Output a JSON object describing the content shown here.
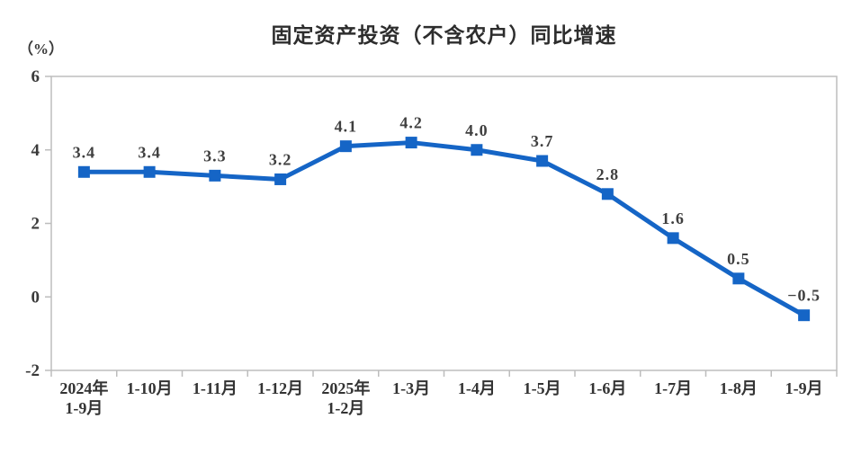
{
  "page": {
    "background_color": "#ffffff"
  },
  "chart_data": {
    "type": "line",
    "title": "固定资产投资（不含农户）同比增速",
    "unit_label": "（%）",
    "categories": [
      [
        "2024年",
        "1-9月"
      ],
      [
        "1-10月"
      ],
      [
        "1-11月"
      ],
      [
        "1-12月"
      ],
      [
        "2025年",
        "1-2月"
      ],
      [
        "1-3月"
      ],
      [
        "1-4月"
      ],
      [
        "1-5月"
      ],
      [
        "1-6月"
      ],
      [
        "1-7月"
      ],
      [
        "1-8月"
      ],
      [
        "1-9月"
      ]
    ],
    "values": [
      3.4,
      3.4,
      3.3,
      3.2,
      4.1,
      4.2,
      4.0,
      3.7,
      2.8,
      1.6,
      0.5,
      -0.5
    ],
    "display_labels": [
      "3.4",
      "3.4",
      "3.3",
      "3.2",
      "4.1",
      "4.2",
      "4.0",
      "3.7",
      "2.8",
      "1.6",
      "0.5",
      "−0.5"
    ],
    "yticks": [
      "6",
      "4",
      "2",
      "0",
      "-2"
    ],
    "ytick_values": [
      6,
      4,
      2,
      0,
      -2
    ],
    "ylim": [
      -2,
      6
    ],
    "grid": false,
    "legend": "none",
    "marker": "square",
    "series_color": "#1565C6",
    "axis_color": "#bdbdbd",
    "text_color": "#3a3a3a"
  }
}
